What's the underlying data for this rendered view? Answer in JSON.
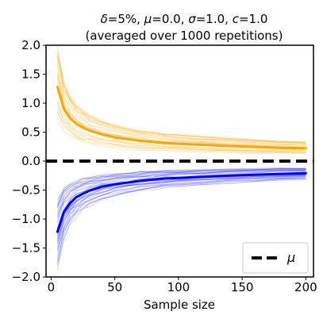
{
  "chart_data": {
    "type": "line",
    "title_parts": [
      {
        "text": "δ",
        "italic": true
      },
      {
        "text": "=5%, ",
        "italic": false
      },
      {
        "text": "μ",
        "italic": true
      },
      {
        "text": "=0.0, ",
        "italic": false
      },
      {
        "text": "σ",
        "italic": true
      },
      {
        "text": "=1.0, ",
        "italic": false
      },
      {
        "text": "c",
        "italic": true
      },
      {
        "text": "=1.0",
        "italic": false
      }
    ],
    "subtitle": "(averaged over 1000 repetitions)",
    "xlabel": "Sample size",
    "ylabel": "",
    "xlim": [
      -4,
      206
    ],
    "ylim": [
      -2.0,
      2.0
    ],
    "x_ticks": [
      0,
      50,
      100,
      150,
      200
    ],
    "y_ticks": [
      2.0,
      1.5,
      1.0,
      0.5,
      0.0,
      -0.5,
      -1.0,
      -1.5,
      -2.0
    ],
    "x_tick_labels": [
      "0",
      "50",
      "100",
      "150",
      "200"
    ],
    "y_tick_labels": [
      "2.0",
      "1.5",
      "1.0",
      "0.5",
      "0.0",
      "−0.5",
      "−1.0",
      "−1.5",
      "−2.0"
    ],
    "grid": false,
    "legend_position": "bottom-right",
    "legend": [
      {
        "label": "μ",
        "style": "dashed",
        "color": "#000000"
      }
    ],
    "x": [
      5,
      10,
      15,
      20,
      25,
      30,
      40,
      50,
      60,
      70,
      80,
      90,
      100,
      120,
      140,
      160,
      180,
      200
    ],
    "series": [
      {
        "role": "average upper bound",
        "color": "#ffa500",
        "width": 3,
        "values": [
          1.28,
          0.9,
          0.74,
          0.64,
          0.58,
          0.53,
          0.46,
          0.41,
          0.38,
          0.35,
          0.33,
          0.31,
          0.3,
          0.28,
          0.26,
          0.245,
          0.23,
          0.22
        ]
      },
      {
        "role": "average lower bound",
        "color": "#0000ff",
        "width": 3,
        "values": [
          -1.22,
          -0.88,
          -0.72,
          -0.62,
          -0.56,
          -0.51,
          -0.44,
          -0.4,
          -0.37,
          -0.34,
          -0.32,
          -0.3,
          -0.29,
          -0.27,
          -0.25,
          -0.235,
          -0.22,
          -0.21
        ]
      },
      {
        "role": "mean",
        "color": "#000000",
        "width": 4,
        "dashed": true,
        "values": [
          0,
          0,
          0,
          0,
          0,
          0,
          0,
          0,
          0,
          0,
          0,
          0,
          0,
          0,
          0,
          0,
          0,
          0
        ]
      }
    ],
    "individual_runs": {
      "count_per_band": 40,
      "upper_color": "#ffa500",
      "lower_color": "#0000ff",
      "opacity": 0.18
    }
  }
}
